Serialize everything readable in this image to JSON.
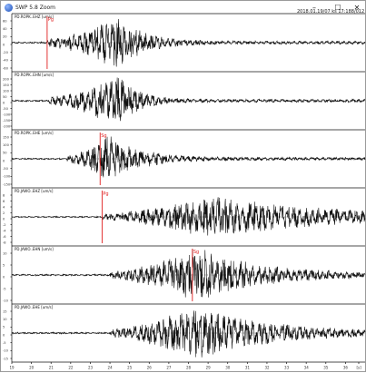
{
  "window": {
    "title": "SWP 5.8 Zoom",
    "timestamp": "2018.01.19/07 ks 17:188/012",
    "minimize_label": "–",
    "maximize_label": "☐",
    "close_label": "✕"
  },
  "chart_data": {
    "type": "line",
    "xlabel": "",
    "x_ticks": [
      "19",
      "20",
      "21",
      "22",
      "23",
      "24",
      "25",
      "26",
      "27",
      "28",
      "29",
      "30",
      "31",
      "32",
      "33",
      "34",
      "35",
      "36",
      "[s]"
    ],
    "xlim": [
      19,
      37
    ],
    "series": [
      {
        "name": "PD.ROPK..EHZ [um/s]",
        "y_ticks": [
          "60",
          "40",
          "20",
          "0",
          "-20",
          "-40",
          "-60"
        ],
        "pick_time": 20.8,
        "pick_label": "Pg",
        "onset": 20.8,
        "peak_time": 24.5,
        "amplitude": 0.95,
        "decay": 1.2,
        "period": 0.28
      },
      {
        "name": "PD.ROPK..EHN [um/s]",
        "y_ticks": [
          "200",
          "150",
          "100",
          "50",
          "0",
          "-50",
          "-100",
          "-150",
          "-200"
        ],
        "pick_time": null,
        "pick_label": "",
        "onset": 20.9,
        "peak_time": 24.4,
        "amplitude": 0.9,
        "decay": 1.0,
        "period": 0.3
      },
      {
        "name": "PD.ROPK..EHE [um/s]",
        "y_ticks": [
          "150",
          "100",
          "50",
          "0",
          "-50",
          "-100",
          "-150"
        ],
        "pick_time": 23.5,
        "pick_label": "Sg",
        "onset": 21.8,
        "peak_time": 23.9,
        "amplitude": 0.85,
        "decay": 1.6,
        "period": 0.3
      },
      {
        "name": "PD.JAWO..EHZ [um/s]",
        "y_ticks": [
          "8",
          "6",
          "4",
          "2",
          "0",
          "-2",
          "-4",
          "-6",
          "-8"
        ],
        "pick_time": 23.6,
        "pick_label": "Pg",
        "onset": 23.6,
        "peak_time": 29.0,
        "amplitude": 0.75,
        "decay": 6.0,
        "period": 0.32
      },
      {
        "name": "PD.JAWO..EHN [um/s]",
        "y_ticks": [
          "10",
          "5",
          "0",
          "-5",
          "-10"
        ],
        "pick_time": 28.2,
        "pick_label": "Sg",
        "onset": 24.0,
        "peak_time": 28.5,
        "amplitude": 0.95,
        "decay": 3.0,
        "period": 0.3
      },
      {
        "name": "PD.JAWO..EHE [um/s]",
        "y_ticks": [
          "15",
          "10",
          "5",
          "0",
          "-5",
          "-10",
          "-15"
        ],
        "pick_time": null,
        "pick_label": "",
        "onset": 24.0,
        "peak_time": 28.4,
        "amplitude": 0.95,
        "decay": 3.5,
        "period": 0.3
      }
    ]
  }
}
